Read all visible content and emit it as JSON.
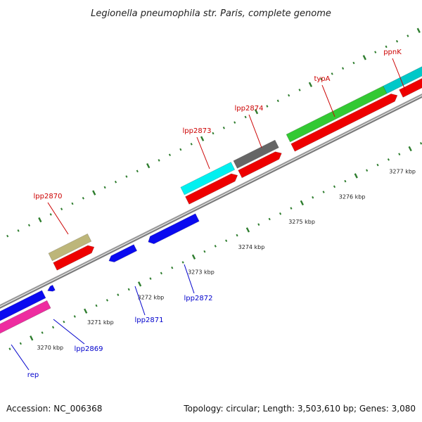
{
  "title": "Legionella pneumophila str. Paris, complete genome",
  "accession_text": "Accession: NC_006368",
  "topology_text": "Topology: circular; Length: 3,503,610 bp; Genes: 3,080",
  "colors": {
    "backbone": "#888888",
    "tick": "#2e7d2e",
    "cds_red": "#ee0000",
    "blue_gene": "#0a0af0",
    "label_top": "#cc0000",
    "label_bottom": "#0000cc"
  },
  "scale_labels": [
    "3270 kbp",
    "3271 kbp",
    "3272 kbp",
    "3273 kbp",
    "3274 kbp",
    "3275 kbp",
    "3276 kbp",
    "3277 kbp"
  ],
  "genes_top": [
    {
      "name": "lpp2870",
      "color": "#bdb67a"
    },
    {
      "name": "lpp2873",
      "color": "#00f0f0"
    },
    {
      "name": "lpp2874",
      "color": "#666666"
    },
    {
      "name": "typA",
      "color": "#33c933"
    },
    {
      "name": "ppnK",
      "color": "#00c8c8"
    }
  ],
  "genes_bottom": [
    {
      "name": "rep",
      "color": "#ee2ca0"
    },
    {
      "name": "lpp2869",
      "color": "#0a0af0"
    },
    {
      "name": "lpp2871",
      "color": "#0a0af0"
    },
    {
      "name": "lpp2872",
      "color": "#0a0af0"
    }
  ]
}
